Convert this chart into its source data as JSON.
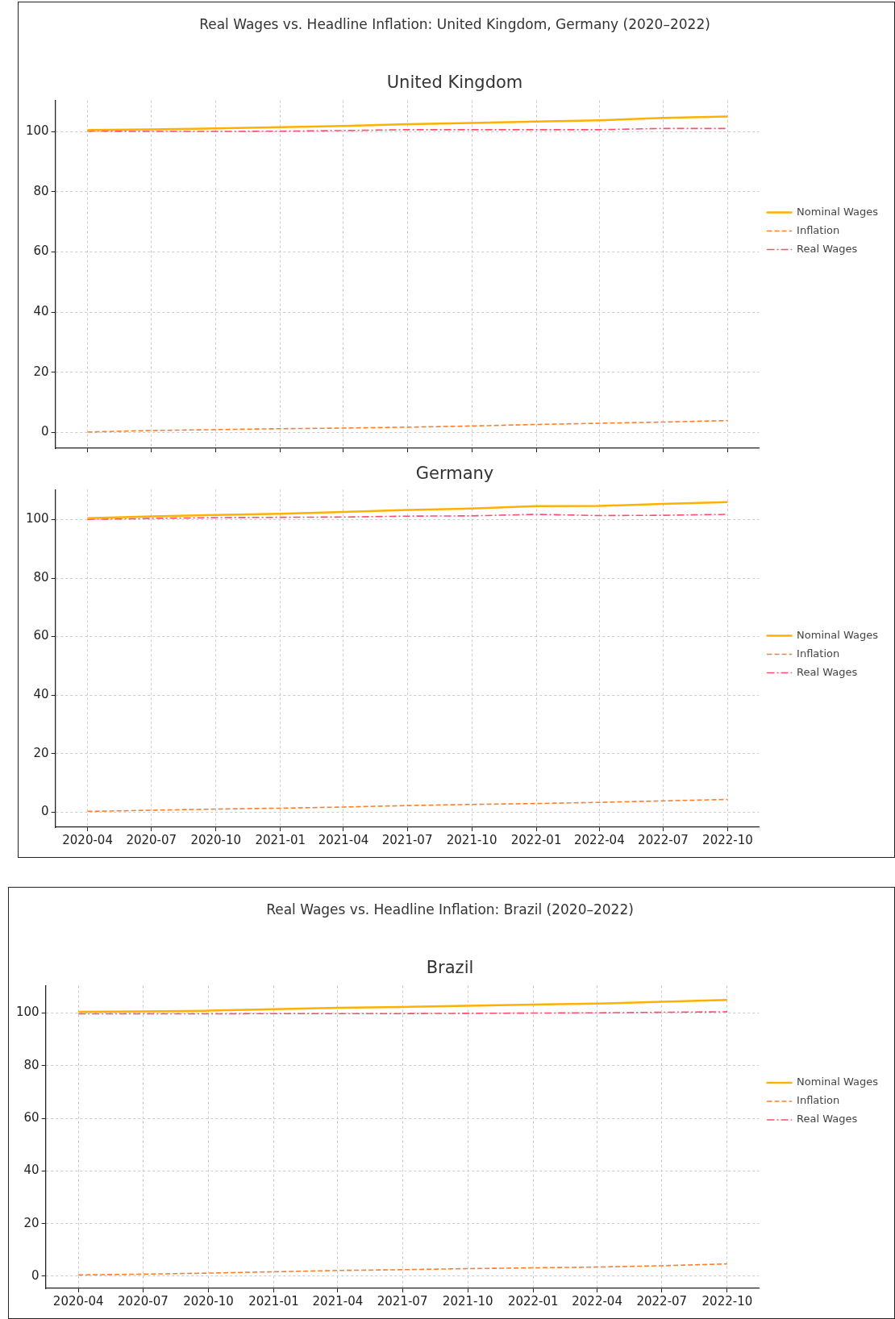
{
  "chart_data": [
    {
      "type": "line",
      "title": "Real Wages vs. Headline Inflation: United Kingdom, Germany (2020–2022)",
      "subtitle": "United Kingdom",
      "x": [
        "2020-04",
        "2020-07",
        "2020-10",
        "2021-01",
        "2021-04",
        "2021-07",
        "2021-10",
        "2022-01",
        "2022-04",
        "2022-07",
        "2022-10"
      ],
      "series": [
        {
          "name": "Nominal Wages",
          "color": "#ffb000",
          "line_style": "solid",
          "values": [
            100.5,
            100.7,
            101.0,
            101.4,
            101.8,
            102.4,
            102.8,
            103.3,
            103.7,
            104.5,
            105.0
          ]
        },
        {
          "name": "Inflation",
          "color": "#ff7f2a",
          "line_style": "dashed",
          "values": [
            0.2,
            0.7,
            1.0,
            1.3,
            1.5,
            1.8,
            2.2,
            2.7,
            3.1,
            3.5,
            4.0
          ]
        },
        {
          "name": "Real Wages",
          "color": "#ff4d6d",
          "line_style": "dashdot",
          "values": [
            100.1,
            100.0,
            100.0,
            100.1,
            100.3,
            100.6,
            100.6,
            100.6,
            100.6,
            101.0,
            101.0
          ]
        }
      ],
      "xlim": [
        "2020-02-15",
        "2022-11-15"
      ],
      "ylim": [
        -5.2,
        110.3
      ],
      "xticks": [
        "2020-04",
        "2020-07",
        "2020-10",
        "2021-01",
        "2021-04",
        "2021-07",
        "2021-10",
        "2022-01",
        "2022-04",
        "2022-07",
        "2022-10"
      ],
      "yticks": [
        0,
        20,
        40,
        60,
        80,
        100
      ],
      "tick_labels": "y",
      "grid": true,
      "legend": "right",
      "marker": "none"
    },
    {
      "type": "line",
      "title": "Germany",
      "x": [
        "2020-04",
        "2020-07",
        "2020-10",
        "2021-01",
        "2021-04",
        "2021-07",
        "2021-10",
        "2022-01",
        "2022-04",
        "2022-07",
        "2022-10"
      ],
      "series": [
        {
          "name": "Nominal Wages",
          "color": "#ffb000",
          "line_style": "solid",
          "values": [
            100.5,
            101.1,
            101.6,
            102.0,
            102.6,
            103.3,
            103.8,
            104.6,
            104.7,
            105.4,
            106.0
          ]
        },
        {
          "name": "Inflation",
          "color": "#ff7f2a",
          "line_style": "dashed",
          "values": [
            0.2,
            0.6,
            1.0,
            1.3,
            1.7,
            2.2,
            2.6,
            2.9,
            3.3,
            3.8,
            4.3
          ]
        },
        {
          "name": "Real Wages",
          "color": "#ff4d6d",
          "line_style": "dashdot",
          "values": [
            100.1,
            100.4,
            100.7,
            100.8,
            100.9,
            101.2,
            101.3,
            101.8,
            101.4,
            101.5,
            101.8
          ]
        }
      ],
      "xlim": [
        "2020-02-15",
        "2022-11-15"
      ],
      "ylim": [
        -5.2,
        110.3
      ],
      "xticks": [
        "2020-04",
        "2020-07",
        "2020-10",
        "2021-01",
        "2021-04",
        "2021-07",
        "2021-10",
        "2022-01",
        "2022-04",
        "2022-07",
        "2022-10"
      ],
      "yticks": [
        0,
        20,
        40,
        60,
        80,
        100
      ],
      "grid": true,
      "legend": "right",
      "marker": "none"
    },
    {
      "type": "line",
      "title": "Real Wages vs. Headline Inflation: Brazil (2020–2022)",
      "subtitle": "Brazil",
      "x": [
        "2020-04",
        "2020-07",
        "2020-10",
        "2021-01",
        "2021-04",
        "2021-07",
        "2021-10",
        "2022-01",
        "2022-04",
        "2022-07",
        "2022-10"
      ],
      "series": [
        {
          "name": "Nominal Wages",
          "color": "#ffb000",
          "line_style": "solid",
          "values": [
            100.5,
            100.6,
            100.9,
            101.5,
            102.0,
            102.3,
            102.8,
            103.2,
            103.6,
            104.3,
            105.0
          ]
        },
        {
          "name": "Inflation",
          "color": "#ff7f2a",
          "line_style": "dashed",
          "values": [
            0.5,
            0.8,
            1.2,
            1.7,
            2.2,
            2.5,
            2.9,
            3.2,
            3.5,
            4.0,
            4.7
          ]
        },
        {
          "name": "Real Wages",
          "color": "#ff4d6d",
          "line_style": "dashdot",
          "values": [
            99.7,
            99.7,
            99.7,
            99.8,
            99.8,
            99.8,
            99.9,
            100.0,
            100.1,
            100.3,
            100.5
          ]
        }
      ],
      "xlim": [
        "2020-02-15",
        "2022-11-15"
      ],
      "ylim": [
        -4.6,
        110.4
      ],
      "xticks": [
        "2020-04",
        "2020-07",
        "2020-10",
        "2021-01",
        "2021-04",
        "2021-07",
        "2021-10",
        "2022-01",
        "2022-04",
        "2022-07",
        "2022-10"
      ],
      "yticks": [
        0,
        20,
        40,
        60,
        80,
        100
      ],
      "grid": true,
      "legend": "right",
      "marker": "none"
    }
  ]
}
